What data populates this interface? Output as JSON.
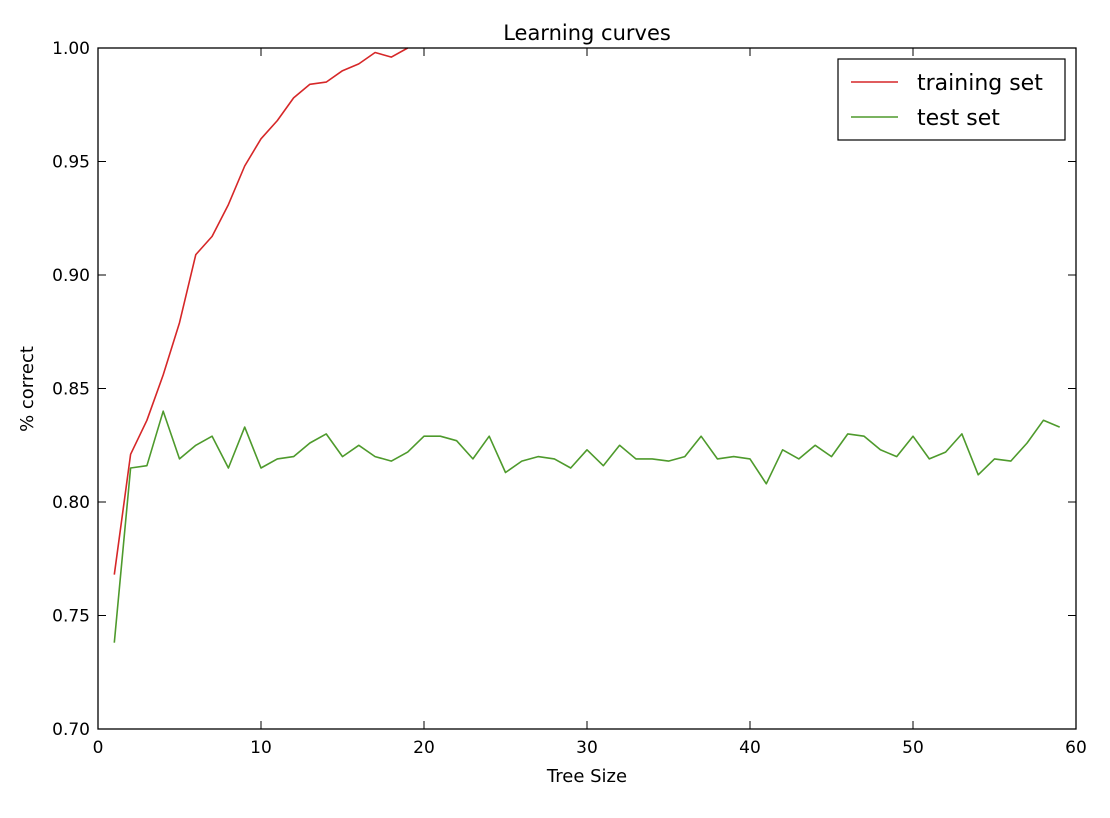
{
  "chart_data": {
    "type": "line",
    "title": "Learning curves",
    "xlabel": "Tree Size",
    "ylabel": "% correct",
    "xlim": [
      0,
      60
    ],
    "ylim": [
      0.7,
      1.0
    ],
    "xticks": [
      0,
      10,
      20,
      30,
      40,
      50,
      60
    ],
    "yticks": [
      "0.70",
      "0.75",
      "0.80",
      "0.85",
      "0.90",
      "0.95",
      "1.00"
    ],
    "grid": false,
    "legend_position": "top-right",
    "series": [
      {
        "name": "training set",
        "color": "#d62728",
        "x": [
          1,
          2,
          3,
          4,
          5,
          6,
          7,
          8,
          9,
          10,
          11,
          12,
          13,
          14,
          15,
          16,
          17,
          18,
          19
        ],
        "y": [
          0.768,
          0.821,
          0.836,
          0.856,
          0.879,
          0.909,
          0.917,
          0.931,
          0.948,
          0.96,
          0.968,
          0.978,
          0.984,
          0.985,
          0.99,
          0.993,
          0.998,
          0.996,
          1.0
        ]
      },
      {
        "name": "test set",
        "color": "#4e9a2c",
        "x": [
          1,
          2,
          3,
          4,
          5,
          6,
          7,
          8,
          9,
          10,
          11,
          12,
          13,
          14,
          15,
          16,
          17,
          18,
          19,
          20,
          21,
          22,
          23,
          24,
          25,
          26,
          27,
          28,
          29,
          30,
          31,
          32,
          33,
          34,
          35,
          36,
          37,
          38,
          39,
          40,
          41,
          42,
          43,
          44,
          45,
          46,
          47,
          48,
          49,
          50,
          51,
          52,
          53,
          54,
          55,
          56,
          57,
          58,
          59
        ],
        "y": [
          0.738,
          0.815,
          0.816,
          0.84,
          0.819,
          0.825,
          0.829,
          0.815,
          0.833,
          0.815,
          0.819,
          0.82,
          0.826,
          0.83,
          0.82,
          0.825,
          0.82,
          0.818,
          0.822,
          0.829,
          0.829,
          0.827,
          0.819,
          0.829,
          0.813,
          0.818,
          0.82,
          0.819,
          0.815,
          0.823,
          0.816,
          0.825,
          0.819,
          0.819,
          0.818,
          0.82,
          0.829,
          0.819,
          0.82,
          0.819,
          0.808,
          0.823,
          0.819,
          0.825,
          0.82,
          0.83,
          0.829,
          0.823,
          0.82,
          0.829,
          0.819,
          0.822,
          0.83,
          0.812,
          0.819,
          0.818,
          0.826,
          0.836,
          0.833
        ]
      }
    ]
  }
}
